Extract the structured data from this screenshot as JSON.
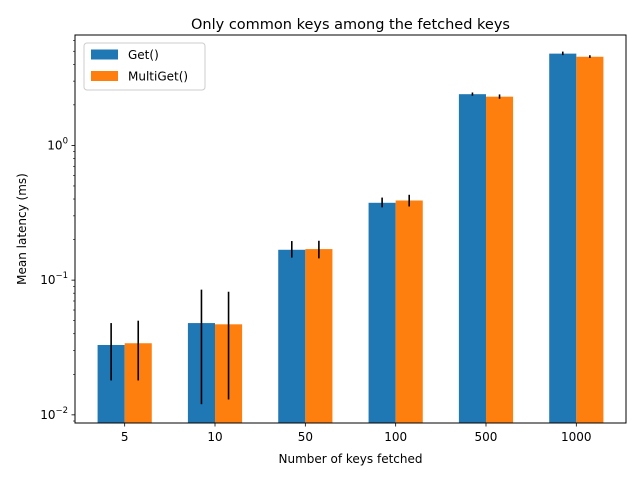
{
  "chart_data": {
    "type": "bar",
    "title": "Only common keys among the fetched keys",
    "xlabel": "Number of keys fetched",
    "ylabel": "Mean latency (ms)",
    "yscale": "log",
    "ylim": [
      0.0087,
      6.6
    ],
    "categories": [
      "5",
      "10",
      "50",
      "100",
      "500",
      "1000"
    ],
    "yticks": [
      {
        "value": 0.01,
        "base": "10",
        "exp": "−2"
      },
      {
        "value": 0.1,
        "base": "10",
        "exp": "−1"
      },
      {
        "value": 1,
        "base": "10",
        "exp": "0"
      }
    ],
    "legend_position": "upper-left",
    "series": [
      {
        "name": "Get()",
        "color": "#1f77b4",
        "values": [
          0.033,
          0.048,
          0.168,
          0.375,
          2.4,
          4.8
        ],
        "err_low": [
          0.018,
          0.012,
          0.147,
          0.347,
          2.34,
          4.68
        ],
        "err_high": [
          0.048,
          0.085,
          0.195,
          0.41,
          2.47,
          4.97
        ]
      },
      {
        "name": "MultiGet()",
        "color": "#ff7f0e",
        "values": [
          0.034,
          0.047,
          0.17,
          0.39,
          2.3,
          4.55
        ],
        "err_low": [
          0.018,
          0.013,
          0.145,
          0.352,
          2.22,
          4.46
        ],
        "err_high": [
          0.05,
          0.082,
          0.196,
          0.43,
          2.39,
          4.67
        ]
      }
    ]
  }
}
